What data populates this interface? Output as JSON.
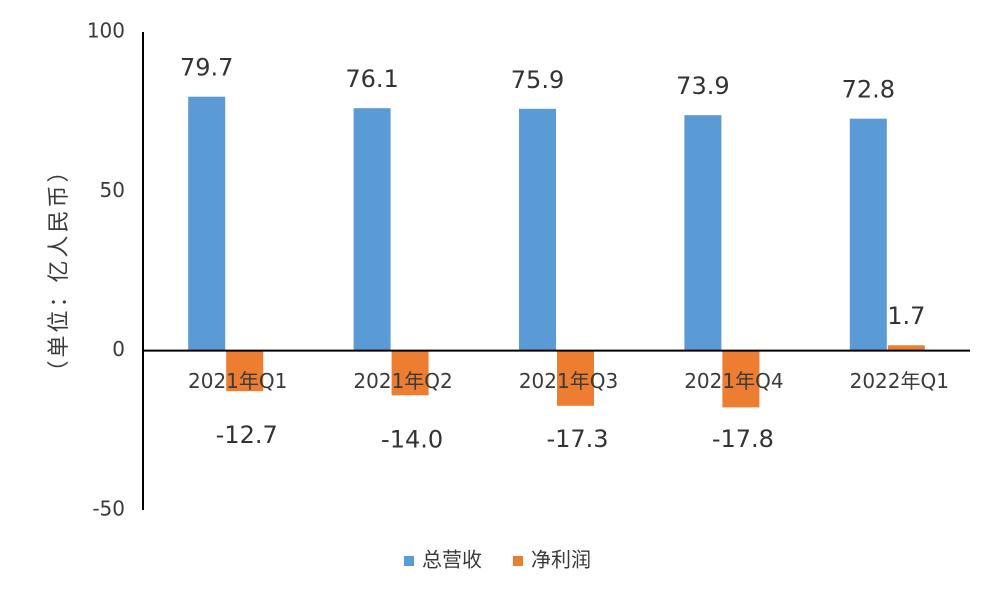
{
  "chart_data": {
    "type": "bar",
    "categories": [
      "2021年Q1",
      "2021年Q2",
      "2021年Q3",
      "2021年Q4",
      "2022年Q1"
    ],
    "series": [
      {
        "name": "总营收",
        "values": [
          79.7,
          76.1,
          75.9,
          73.9,
          72.8
        ],
        "color": "#5b9bd5",
        "labels": [
          "79.7",
          "76.1",
          "75.9",
          "73.9",
          "72.8"
        ]
      },
      {
        "name": "净利润",
        "values": [
          -12.7,
          -14.0,
          -17.3,
          -17.8,
          1.7
        ],
        "color": "#ed7d31",
        "labels": [
          "-12.7",
          "-14.0",
          "-17.3",
          "-17.8",
          "1.7"
        ]
      }
    ],
    "ylabel": "（单位：亿人民币）",
    "ylim": [
      -50,
      100
    ],
    "yticks": [
      -50,
      0,
      50,
      100
    ],
    "ytick_labels": [
      "-50",
      "0",
      "50",
      "100"
    ],
    "grid": false,
    "legend_position": "bottom"
  }
}
